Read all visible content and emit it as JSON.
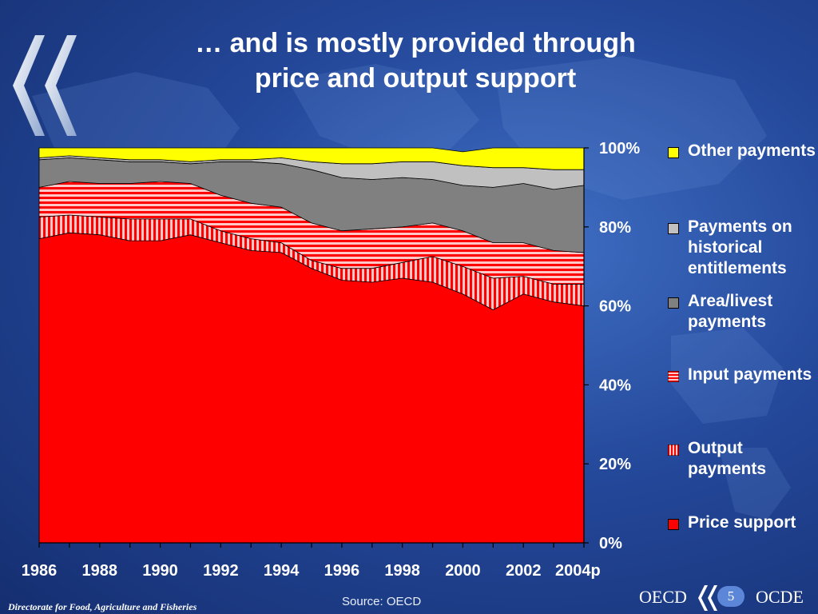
{
  "title_line1": "… and is mostly provided through",
  "title_line2": "price and output support",
  "chart_data": {
    "type": "area",
    "subtype": "stacked-percent",
    "categories": [
      "1986",
      "1987",
      "1988",
      "1989",
      "1990",
      "1991",
      "1992",
      "1993",
      "1994",
      "1995",
      "1996",
      "1997",
      "1998",
      "1999",
      "2000",
      "2001",
      "2002",
      "2003",
      "2004p"
    ],
    "x_tick_labels": [
      "1986",
      "1988",
      "1990",
      "1992",
      "1994",
      "1996",
      "1998",
      "2000",
      "2002",
      "2004p"
    ],
    "y_tick_labels": [
      "0%",
      "20%",
      "40%",
      "60%",
      "80%",
      "100%"
    ],
    "ylim": [
      0,
      100
    ],
    "series": [
      {
        "name": "Price support",
        "pattern": "solid",
        "values": [
          77,
          78.5,
          78,
          76.5,
          76.5,
          78,
          76,
          74,
          73.5,
          69.5,
          66.5,
          66,
          67,
          66,
          63,
          59,
          63,
          61,
          60
        ]
      },
      {
        "name": "Output payments",
        "pattern": "vertical-stripes",
        "values": [
          5.5,
          4.5,
          4.5,
          5.5,
          5.5,
          4,
          3,
          3,
          2.5,
          2,
          3,
          3.5,
          4,
          6.5,
          7,
          8,
          4.5,
          4.5,
          5.5
        ]
      },
      {
        "name": "Input payments",
        "pattern": "horizontal-stripes",
        "values": [
          7.5,
          8.5,
          8.5,
          9,
          9.5,
          9,
          9,
          9,
          9,
          9.5,
          9.5,
          10,
          9,
          8.5,
          9,
          9,
          8.5,
          8.5,
          8
        ]
      },
      {
        "name": "Area/livest payments",
        "pattern": "solid",
        "values": [
          7,
          6,
          6,
          5.5,
          5,
          5,
          8.5,
          10.5,
          11,
          13.5,
          13.5,
          12.5,
          12.5,
          11,
          11.5,
          14,
          15,
          15.5,
          17
        ]
      },
      {
        "name": "Payments on historical entitlements",
        "pattern": "solid",
        "values": [
          0.5,
          0.5,
          0.5,
          0.5,
          0.5,
          0.5,
          0.5,
          0.5,
          1.5,
          2,
          3.5,
          4,
          4,
          4.5,
          5,
          5,
          4,
          5,
          4
        ]
      },
      {
        "name": "Other payments",
        "pattern": "solid",
        "values": [
          2.5,
          2,
          2.5,
          3,
          3,
          3.5,
          3,
          3,
          2.5,
          3.5,
          4,
          4,
          3.5,
          3.5,
          3.5,
          5,
          5,
          5.5,
          5.5
        ]
      }
    ],
    "colors": {
      "price_support": "#ff0000",
      "output_payments": "#ff0000",
      "input_payments": "#ff0000",
      "area_livest": "#808080",
      "historical": "#c0c0c0",
      "other": "#ffff00"
    }
  },
  "legend": [
    {
      "label": "Other payments",
      "swatch": "other-payments"
    },
    {
      "label": "Payments on historical entitlements",
      "swatch": "historical-payments"
    },
    {
      "label": "Area/livest payments",
      "swatch": "area-livest-payments"
    },
    {
      "label": "Input payments",
      "swatch": "input-payments"
    },
    {
      "label": "Output payments",
      "swatch": "output-payments"
    },
    {
      "label": "Price support",
      "swatch": "price-support"
    }
  ],
  "source": "Source: OECD",
  "footer_left": "Directorate for Food, Agriculture and Fisheries",
  "logo_left": "OECD",
  "logo_right": "OCDE",
  "page_number": "5"
}
